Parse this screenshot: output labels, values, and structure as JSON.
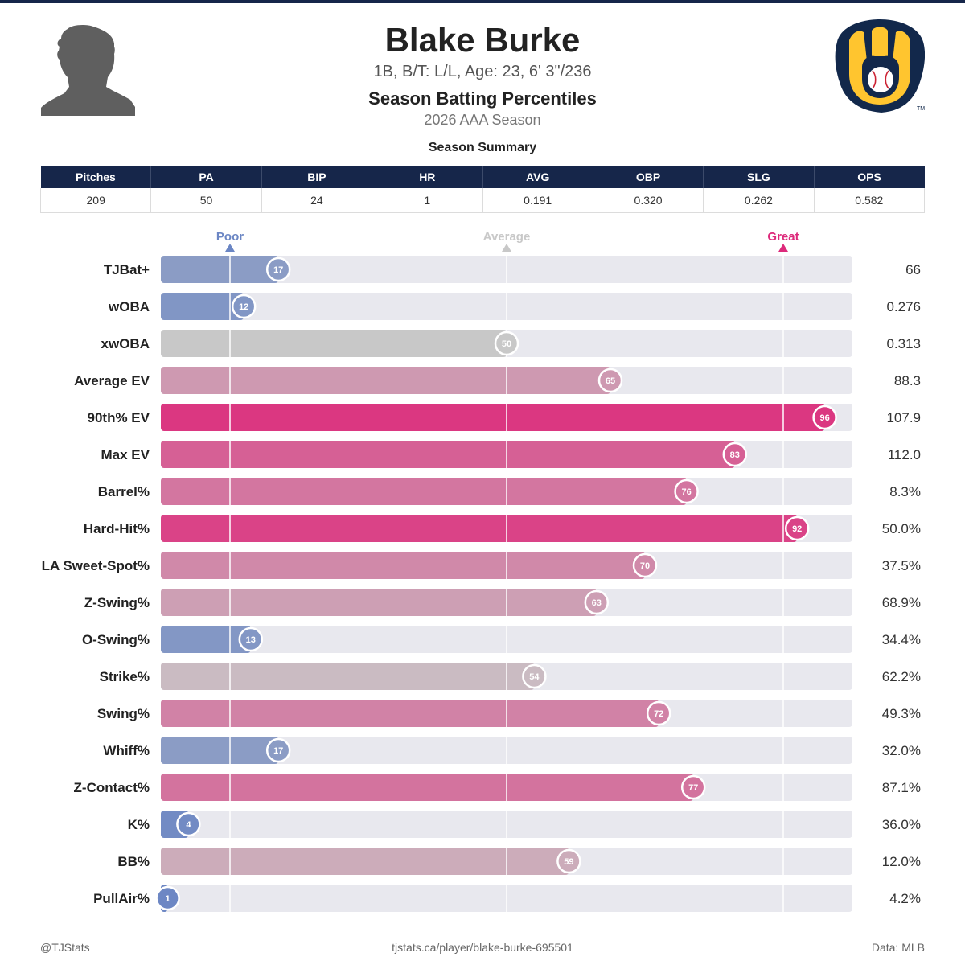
{
  "header": {
    "player_name": "Blake Burke",
    "player_meta": "1B, B/T: L/L, Age: 23, 6' 3\"/236",
    "chart_title": "Season Batting Percentiles",
    "chart_subtitle": "2026 AAA Season",
    "avatar_icon": "player-silhouette-icon",
    "team_logo_icon": "brewers-ball-in-glove-logo-icon"
  },
  "summary": {
    "title": "Season Summary",
    "columns": [
      "Pitches",
      "PA",
      "BIP",
      "HR",
      "AVG",
      "OBP",
      "SLG",
      "OPS"
    ],
    "values": [
      "209",
      "50",
      "24",
      "1",
      "0.191",
      "0.320",
      "0.262",
      "0.582"
    ]
  },
  "chart_data": {
    "type": "bar",
    "orientation": "horizontal",
    "scale_labels": {
      "poor": "Poor",
      "average": "Average",
      "great": "Great"
    },
    "reference_lines": [
      10,
      50,
      90
    ],
    "xlim": [
      0,
      100
    ],
    "categories": [
      "TJBat+",
      "wOBA",
      "xwOBA",
      "Average EV",
      "90th% EV",
      "Max EV",
      "Barrel%",
      "Hard-Hit%",
      "LA Sweet-Spot%",
      "Z-Swing%",
      "O-Swing%",
      "Strike%",
      "Swing%",
      "Whiff%",
      "Z-Contact%",
      "K%",
      "BB%",
      "PullAir%"
    ],
    "percentiles": [
      17,
      12,
      50,
      65,
      96,
      83,
      76,
      92,
      70,
      63,
      13,
      54,
      72,
      17,
      77,
      4,
      59,
      1
    ],
    "stat_values": [
      "66",
      "0.276",
      "0.313",
      "88.3",
      "107.9",
      "112.0",
      "8.3%",
      "50.0%",
      "37.5%",
      "68.9%",
      "34.4%",
      "62.2%",
      "49.3%",
      "32.0%",
      "87.1%",
      "36.0%",
      "12.0%",
      "4.2%"
    ],
    "colors": {
      "poor": "#6b86c4",
      "average": "#c8c8c8",
      "great": "#dd2a7b",
      "track": "#e8e8ee"
    }
  },
  "footer": {
    "left": "@TJStats",
    "center": "tjstats.ca/player/blake-burke-695501",
    "right": "Data: MLB"
  }
}
